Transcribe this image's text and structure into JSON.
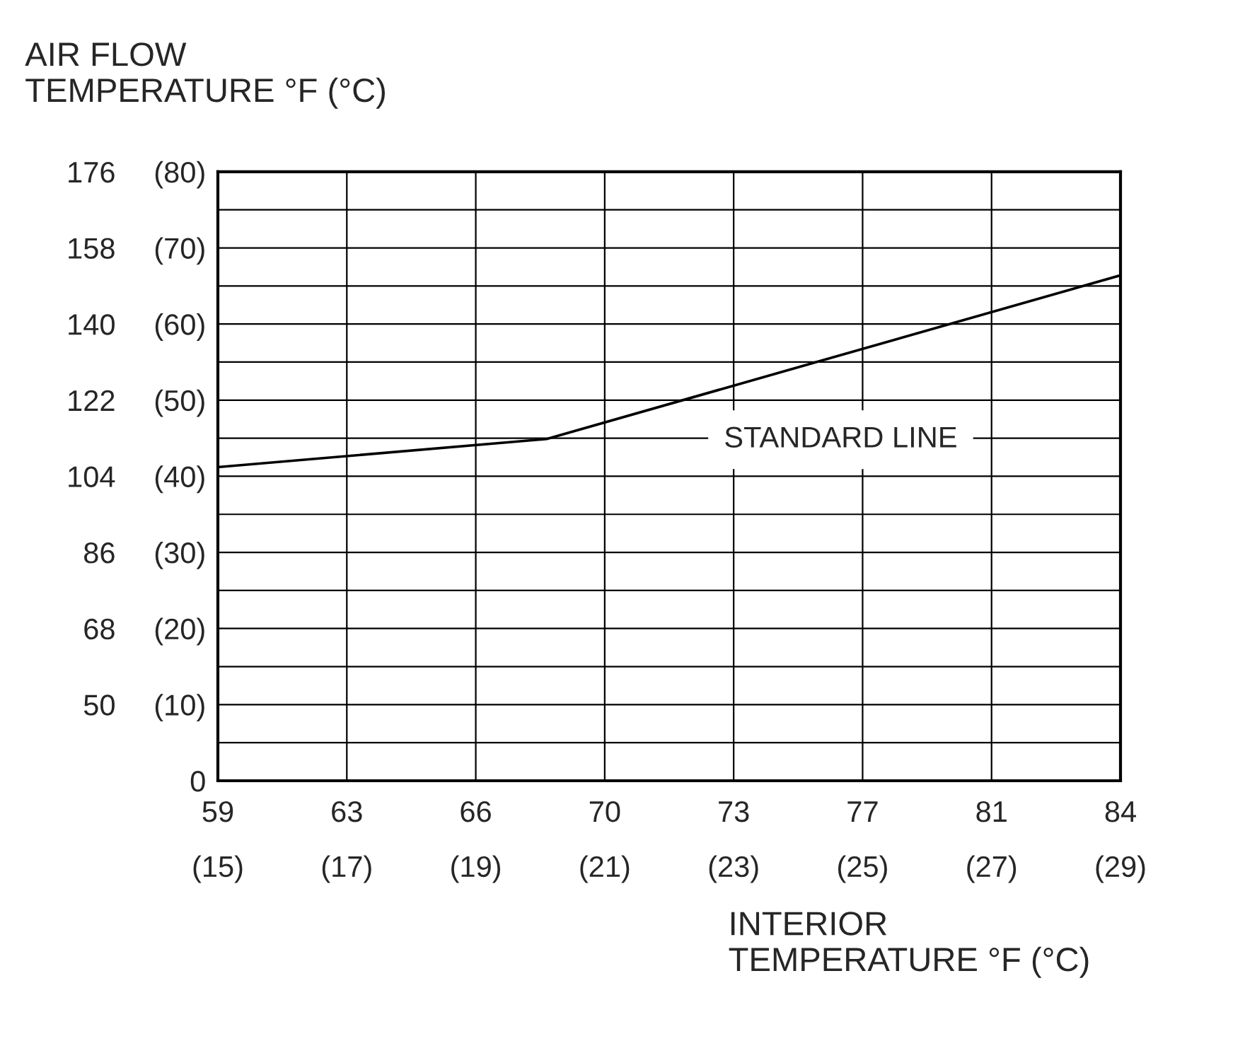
{
  "chart_data": {
    "type": "line",
    "xlabel": "INTERIOR\nTEMPERATURE °F (°C)",
    "ylabel": "AIR FLOW\nTEMPERATURE °F (°C)",
    "x": [
      15,
      20.1,
      29
    ],
    "series": [
      {
        "name": "STANDARD LINE",
        "color": "#000000",
        "values": [
          41.2,
          44.9,
          66.4
        ]
      }
    ],
    "xlim": [
      15,
      29
    ],
    "xticks": [
      {
        "value": 15,
        "label": "(15)"
      },
      {
        "value": 17,
        "label": "(17)"
      },
      {
        "value": 19,
        "label": "(19)"
      },
      {
        "value": 21,
        "label": "(21)"
      },
      {
        "value": 23,
        "label": "(23)"
      },
      {
        "value": 25,
        "label": "(25)"
      },
      {
        "value": 27,
        "label": "(27)"
      },
      {
        "value": 29,
        "label": "(29)"
      }
    ],
    "x2lim": [
      59,
      84.2
    ],
    "x2ticks": [
      59,
      {
        "value": 62.6,
        "label": "63"
      },
      {
        "value": 66.2,
        "label": "66"
      },
      {
        "value": 69.8,
        "label": "70"
      },
      {
        "value": 73.4,
        "label": "73"
      },
      77,
      {
        "value": 80.6,
        "label": "81"
      },
      {
        "value": 84.2,
        "label": "84"
      }
    ],
    "ylim": [
      0,
      80
    ],
    "yticks": [
      0,
      {
        "value": 5,
        "label": null
      },
      {
        "value": 10,
        "label": "(10)"
      },
      {
        "value": 15,
        "label": null
      },
      {
        "value": 20,
        "label": "(20)"
      },
      {
        "value": 25,
        "label": null
      },
      {
        "value": 30,
        "label": "(30)"
      },
      {
        "value": 35,
        "label": null
      },
      {
        "value": 40,
        "label": "(40)"
      },
      {
        "value": 45,
        "label": null
      },
      {
        "value": 50,
        "label": "(50)"
      },
      {
        "value": 55,
        "label": null
      },
      {
        "value": 60,
        "label": "(60)"
      },
      {
        "value": 65,
        "label": null
      },
      {
        "value": 70,
        "label": "(70)"
      },
      {
        "value": 75,
        "label": null
      },
      {
        "value": 80,
        "label": "(80)"
      }
    ],
    "y2lim": [
      32,
      176
    ],
    "y2ticks": [
      50,
      68,
      86,
      104,
      122,
      140,
      158,
      176
    ],
    "grid": true,
    "legend": false,
    "marker": "none",
    "line_style": "solid"
  }
}
